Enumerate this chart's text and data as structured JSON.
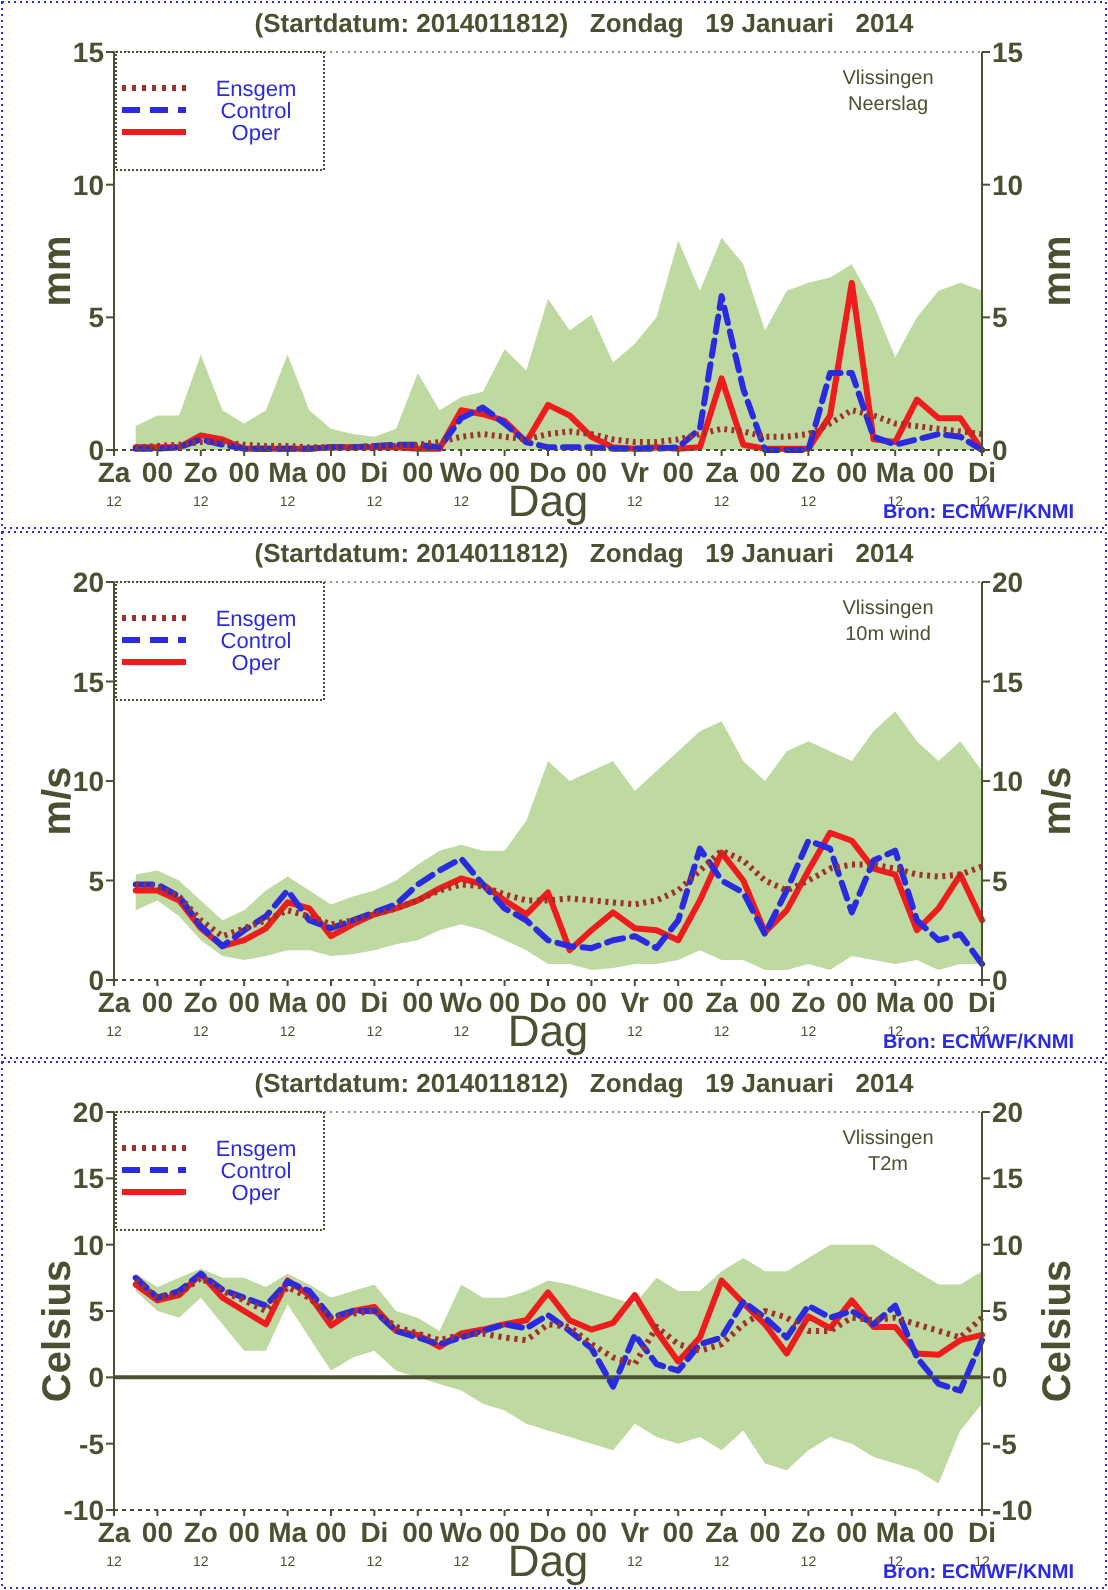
{
  "chart_data": [
    {
      "type": "line",
      "title": "(Startdatum: 2014011812)   Zondag   19 Januari   2014",
      "xlabel": "Dag",
      "ylabel": "mm",
      "y2label": "mm",
      "annotations": [
        "Vlissingen",
        "Neerslag",
        "Bron: ECMWF/KNMI"
      ],
      "legend": "top left",
      "categories": [
        "Za\n12",
        null,
        "00",
        null,
        "Zo\n12",
        null,
        "00",
        null,
        "Ma\n12",
        null,
        "00",
        null,
        "Di\n12",
        null,
        "00",
        null,
        "Wo\n12",
        null,
        "00",
        null,
        "Do",
        null,
        "00",
        null,
        "Vr\n12",
        null,
        "00",
        null,
        "Za\n12",
        null,
        "00",
        null,
        "Zo\n12",
        null,
        "00",
        null,
        "Ma\n12",
        null,
        "00",
        null,
        "Di\n12"
      ],
      "ylim": [
        0,
        15
      ],
      "yticks": [
        0,
        5,
        10,
        15
      ],
      "y2lim": [
        0,
        15
      ],
      "y2ticks": [
        0,
        5,
        10,
        15
      ],
      "series": [
        {
          "name": "Ensgem",
          "color": "#a0302a",
          "line_style": "dotted",
          "values": [
            null,
            0.1,
            0.15,
            0.2,
            0.3,
            0.3,
            0.2,
            0.15,
            0.15,
            0.1,
            0.1,
            0.1,
            0.15,
            0.15,
            0.2,
            0.3,
            0.5,
            0.6,
            0.5,
            0.4,
            0.6,
            0.7,
            0.6,
            0.4,
            0.3,
            0.3,
            0.4,
            0.6,
            0.8,
            0.7,
            0.5,
            0.5,
            0.6,
            1.0,
            1.5,
            1.3,
            1.0,
            0.9,
            0.8,
            0.7,
            0.6
          ],
          "lower": [
            null,
            0,
            0,
            0,
            0,
            0,
            0,
            0,
            0,
            0,
            0,
            0,
            0,
            0,
            0,
            0,
            0,
            0,
            0,
            0,
            0,
            0,
            0,
            0,
            0,
            0,
            0,
            0,
            0,
            0,
            0,
            0,
            0,
            0,
            0,
            0,
            0,
            0,
            0,
            0,
            0
          ],
          "upper": [
            null,
            0.9,
            1.3,
            1.3,
            3.6,
            1.5,
            1.0,
            1.5,
            3.6,
            1.5,
            0.8,
            0.6,
            0.5,
            0.8,
            2.9,
            1.5,
            2.0,
            2.2,
            3.8,
            3.0,
            5.7,
            4.5,
            5.1,
            3.3,
            4.0,
            5.0,
            7.9,
            6.0,
            8.0,
            7.0,
            4.5,
            6.0,
            6.3,
            6.5,
            7.0,
            5.5,
            3.5,
            5.0,
            6.0,
            6.3,
            6.0
          ]
        },
        {
          "name": "Control",
          "color": "#2a2ae0",
          "line_style": "dashed",
          "values": [
            null,
            0.05,
            0.05,
            0.1,
            0.4,
            0.2,
            0.05,
            0.05,
            0.05,
            0.05,
            0.1,
            0.1,
            0.15,
            0.2,
            0.2,
            0.1,
            1.2,
            1.6,
            1.0,
            0.3,
            0.1,
            0.1,
            0.1,
            0.05,
            0.05,
            0.05,
            0.1,
            0.8,
            5.8,
            2.3,
            0,
            0,
            0,
            2.9,
            2.9,
            0.5,
            0.2,
            0.4,
            0.6,
            0.5,
            0
          ]
        },
        {
          "name": "Oper",
          "color": "#ee1c1c",
          "line_style": "solid",
          "values": [
            null,
            0.1,
            0.1,
            0.1,
            0.55,
            0.4,
            0.05,
            0.05,
            0.05,
            0.05,
            0.1,
            0.1,
            0.1,
            0.1,
            0.05,
            0.05,
            1.5,
            1.35,
            1.1,
            0.3,
            1.7,
            1.3,
            0.5,
            0.1,
            0.05,
            0.1,
            0.05,
            0.1,
            2.7,
            0.2,
            0.05,
            0.05,
            0.05,
            1.3,
            6.3,
            0.4,
            0.3,
            1.9,
            1.2,
            1.2,
            0
          ]
        }
      ]
    },
    {
      "type": "line",
      "title": "(Startdatum: 2014011812)   Zondag   19 Januari   2014",
      "xlabel": "Dag",
      "ylabel": "m/s",
      "y2label": "m/s",
      "annotations": [
        "Vlissingen",
        "10m wind",
        "Bron: ECMWF/KNMI"
      ],
      "legend": "top left",
      "categories": [
        "Za\n12",
        null,
        "00",
        null,
        "Zo\n12",
        null,
        "00",
        null,
        "Ma\n12",
        null,
        "00",
        null,
        "Di\n12",
        null,
        "00",
        null,
        "Wo\n12",
        null,
        "00",
        null,
        "Do",
        null,
        "00",
        null,
        "Vr\n12",
        null,
        "00",
        null,
        "Za\n12",
        null,
        "00",
        null,
        "Zo\n12",
        null,
        "00",
        null,
        "Ma\n12",
        null,
        "00",
        null,
        "Di\n12"
      ],
      "ylim": [
        0,
        20
      ],
      "yticks": [
        0,
        5,
        10,
        15,
        20
      ],
      "y2lim": [
        0,
        20
      ],
      "y2ticks": [
        0,
        5,
        10,
        15,
        20
      ],
      "series": [
        {
          "name": "Ensgem",
          "color": "#a0302a",
          "line_style": "dotted",
          "values": [
            null,
            4.8,
            4.7,
            4.2,
            3.0,
            2.2,
            2.6,
            3.0,
            3.5,
            3.2,
            2.8,
            3.0,
            3.3,
            3.6,
            4.0,
            4.5,
            4.8,
            4.7,
            4.3,
            4.0,
            4.0,
            4.1,
            4.0,
            3.9,
            3.8,
            4.0,
            4.5,
            5.5,
            6.5,
            6.0,
            5.0,
            4.5,
            5.0,
            5.6,
            5.8,
            5.8,
            5.6,
            5.3,
            5.2,
            5.3,
            5.7
          ],
          "lower": [
            null,
            3.5,
            4.0,
            3.2,
            2.0,
            1.2,
            1.0,
            1.2,
            1.5,
            1.5,
            1.2,
            1.3,
            1.5,
            1.8,
            2.0,
            2.5,
            2.8,
            2.5,
            2.0,
            1.5,
            0.8,
            0.8,
            0.5,
            0.6,
            0.8,
            0.8,
            1.0,
            1.5,
            1.0,
            1.0,
            0.5,
            0.5,
            0.8,
            0.5,
            1.2,
            1.0,
            0.8,
            1.0,
            0.5,
            0.8,
            0.8
          ],
          "upper": [
            null,
            5.3,
            5.5,
            5.0,
            4.0,
            3.0,
            3.5,
            4.5,
            5.2,
            4.5,
            3.8,
            4.2,
            4.5,
            5.0,
            5.8,
            6.5,
            6.8,
            6.5,
            6.5,
            8.0,
            11.0,
            10.0,
            10.5,
            11.0,
            9.5,
            10.5,
            11.5,
            12.5,
            13.0,
            11.0,
            10.0,
            11.5,
            12.0,
            11.5,
            11.0,
            12.5,
            13.5,
            12.0,
            11.0,
            12.0,
            10.5
          ]
        },
        {
          "name": "Control",
          "color": "#2a2ae0",
          "line_style": "dashed",
          "values": [
            null,
            4.8,
            4.8,
            4.2,
            2.7,
            1.7,
            2.5,
            3.2,
            4.5,
            3.0,
            2.6,
            3.0,
            3.4,
            3.8,
            4.8,
            5.5,
            6.1,
            4.8,
            3.6,
            3.0,
            2.0,
            1.7,
            1.6,
            2.0,
            2.2,
            1.6,
            3.0,
            6.6,
            5.0,
            4.4,
            2.3,
            4.5,
            7.0,
            6.6,
            3.4,
            6.0,
            6.5,
            3.0,
            2.0,
            2.3,
            0.8
          ]
        },
        {
          "name": "Oper",
          "color": "#ee1c1c",
          "line_style": "solid",
          "values": [
            null,
            4.5,
            4.5,
            4.0,
            2.6,
            1.7,
            2.0,
            2.6,
            3.9,
            3.6,
            2.2,
            2.8,
            3.3,
            3.6,
            4.0,
            4.6,
            5.1,
            4.8,
            4.0,
            3.3,
            4.4,
            1.5,
            2.5,
            3.4,
            2.6,
            2.5,
            2.0,
            4.0,
            6.4,
            5.0,
            2.4,
            3.5,
            5.5,
            7.4,
            7.0,
            5.6,
            5.3,
            2.5,
            3.6,
            5.3,
            3.0
          ]
        }
      ]
    },
    {
      "type": "line",
      "title": "(Startdatum: 2014011812)   Zondag   19 Januari   2014",
      "xlabel": "Dag",
      "ylabel": "Celsius",
      "y2label": "Celsius",
      "annotations": [
        "Vlissingen",
        "T2m",
        "Bron: ECMWF/KNMI"
      ],
      "legend": "top left",
      "categories": [
        "Za\n12",
        null,
        "00",
        null,
        "Zo\n12",
        null,
        "00",
        null,
        "Ma\n12",
        null,
        "00",
        null,
        "Di\n12",
        null,
        "00",
        null,
        "Wo\n12",
        null,
        "00",
        null,
        "Do",
        null,
        "00",
        null,
        "Vr\n12",
        null,
        "00",
        null,
        "Za\n12",
        null,
        "00",
        null,
        "Zo\n12",
        null,
        "00",
        null,
        "Ma\n12",
        null,
        "00",
        null,
        "Di\n12"
      ],
      "ylim": [
        -10,
        20
      ],
      "yticks": [
        -10,
        -5,
        0,
        5,
        10,
        15,
        20
      ],
      "y2lim": [
        -10,
        20
      ],
      "y2ticks": [
        -10,
        -5,
        0,
        5,
        10,
        15,
        20
      ],
      "ref_lines": [
        {
          "axis": "y",
          "value": 0,
          "color": "#4a5030"
        }
      ],
      "series": [
        {
          "name": "Ensgem",
          "color": "#a0302a",
          "line_style": "dotted",
          "values": [
            null,
            7.3,
            6.0,
            6.3,
            7.5,
            6.5,
            5.8,
            5.0,
            6.8,
            6.0,
            4.5,
            4.8,
            5.0,
            3.8,
            3.3,
            2.8,
            3.2,
            3.3,
            3.0,
            2.8,
            4.0,
            3.8,
            2.5,
            1.5,
            1.0,
            3.8,
            2.5,
            2.0,
            2.5,
            4.0,
            5.0,
            4.5,
            3.5,
            3.5,
            4.5,
            4.3,
            4.5,
            4.0,
            3.5,
            3.0,
            4.5
          ],
          "lower": [
            null,
            6.5,
            5.0,
            4.5,
            6.0,
            4.0,
            2.0,
            2.0,
            5.5,
            3.0,
            0.5,
            1.5,
            2.0,
            0.5,
            0.0,
            -0.5,
            -1.0,
            -2.0,
            -2.5,
            -3.5,
            -4.0,
            -4.5,
            -5.0,
            -5.5,
            -3.5,
            -4.5,
            -5.0,
            -4.5,
            -5.5,
            -4.0,
            -6.5,
            -7.0,
            -5.5,
            -4.5,
            -5.0,
            -6.0,
            -6.5,
            -7.0,
            -8.0,
            -4.0,
            -2.0
          ],
          "upper": [
            null,
            7.8,
            6.8,
            7.5,
            8.2,
            7.5,
            7.5,
            6.8,
            7.8,
            7.0,
            6.0,
            6.5,
            7.0,
            5.0,
            4.5,
            3.5,
            7.0,
            6.0,
            6.0,
            6.5,
            7.3,
            7.0,
            6.5,
            6.0,
            5.5,
            7.5,
            6.5,
            6.5,
            8.0,
            9.0,
            8.0,
            8.0,
            9.0,
            10.0,
            10.0,
            10.0,
            9.0,
            8.0,
            7.0,
            7.0,
            8.0
          ]
        },
        {
          "name": "Control",
          "color": "#2a2ae0",
          "line_style": "dashed",
          "values": [
            null,
            7.5,
            6.0,
            6.5,
            7.8,
            6.6,
            6.0,
            5.4,
            7.2,
            6.5,
            4.5,
            5.0,
            5.0,
            3.5,
            3.0,
            2.5,
            3.0,
            3.5,
            4.0,
            3.7,
            4.7,
            3.5,
            2.2,
            -0.7,
            3.2,
            1.0,
            0.5,
            2.5,
            3.0,
            5.7,
            4.5,
            3.0,
            5.4,
            4.5,
            5.0,
            4.0,
            5.4,
            1.5,
            -0.5,
            -1.0,
            2.8
          ]
        },
        {
          "name": "Oper",
          "color": "#ee1c1c",
          "line_style": "solid",
          "values": [
            null,
            7.0,
            5.8,
            6.2,
            7.8,
            6.0,
            5.0,
            4.0,
            7.3,
            6.2,
            3.9,
            5.0,
            5.3,
            3.5,
            3.2,
            2.3,
            3.3,
            3.6,
            4.0,
            4.3,
            6.4,
            4.3,
            3.6,
            4.1,
            6.2,
            3.5,
            1.2,
            3.0,
            7.3,
            5.6,
            4.0,
            1.8,
            4.6,
            3.7,
            5.8,
            3.8,
            3.8,
            1.8,
            1.7,
            2.8,
            3.2
          ]
        }
      ]
    }
  ]
}
